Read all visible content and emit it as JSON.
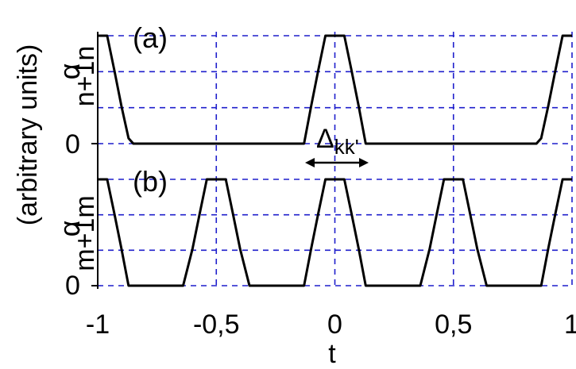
{
  "chart_data": {
    "type": "line",
    "x_tick_labels": [
      "-1",
      "-0,5",
      "0",
      "0,5",
      "1"
    ],
    "x_ticks": [
      -1,
      -0.5,
      0,
      0.5,
      1
    ],
    "xlabel": "t",
    "ylabel_shared": "(arbitrary units)",
    "xlim": [
      -1,
      1
    ],
    "grid": true,
    "grid_style": "dashed",
    "grid_color": "#1f1fcc",
    "line_color": "#000000",
    "annotation": {
      "label_main": "Δ",
      "label_sub": "kk'",
      "x_from": -0.13,
      "x_to": 0.15
    },
    "panels": [
      {
        "label": "(a)",
        "ylabel_main": "α",
        "ylabel_sub": "n+1n",
        "y_tick_label": "0",
        "ylim": [
          0,
          1
        ],
        "x": [
          -1,
          -0.96,
          -0.93,
          -0.9,
          -0.87,
          -0.85,
          -0.13,
          -0.1,
          -0.07,
          -0.04,
          0.04,
          0.07,
          0.1,
          0.13,
          0.85,
          0.87,
          0.9,
          0.93,
          0.96,
          1
        ],
        "y": [
          1,
          1,
          0.68,
          0.35,
          0.05,
          0,
          0,
          0.35,
          0.68,
          1,
          1,
          0.68,
          0.35,
          0,
          0,
          0.05,
          0.35,
          0.68,
          1,
          1
        ]
      },
      {
        "label": "(b)",
        "ylabel_main": "α",
        "ylabel_sub": "m+1m",
        "y_tick_label": "0",
        "ylim": [
          0,
          1
        ],
        "x": [
          -1,
          -0.96,
          -0.93,
          -0.9,
          -0.87,
          -0.64,
          -0.6,
          -0.57,
          -0.54,
          -0.46,
          -0.43,
          -0.4,
          -0.36,
          -0.13,
          -0.1,
          -0.07,
          -0.04,
          0.04,
          0.07,
          0.1,
          0.13,
          0.36,
          0.4,
          0.43,
          0.46,
          0.54,
          0.57,
          0.6,
          0.64,
          0.87,
          0.9,
          0.93,
          0.96,
          1
        ],
        "y": [
          1,
          1,
          0.68,
          0.35,
          0,
          0,
          0.35,
          0.68,
          1,
          1,
          0.68,
          0.35,
          0,
          0,
          0.35,
          0.68,
          1,
          1,
          0.68,
          0.35,
          0,
          0,
          0.35,
          0.68,
          1,
          1,
          0.68,
          0.35,
          0,
          0,
          0.35,
          0.68,
          1,
          1
        ]
      }
    ]
  }
}
